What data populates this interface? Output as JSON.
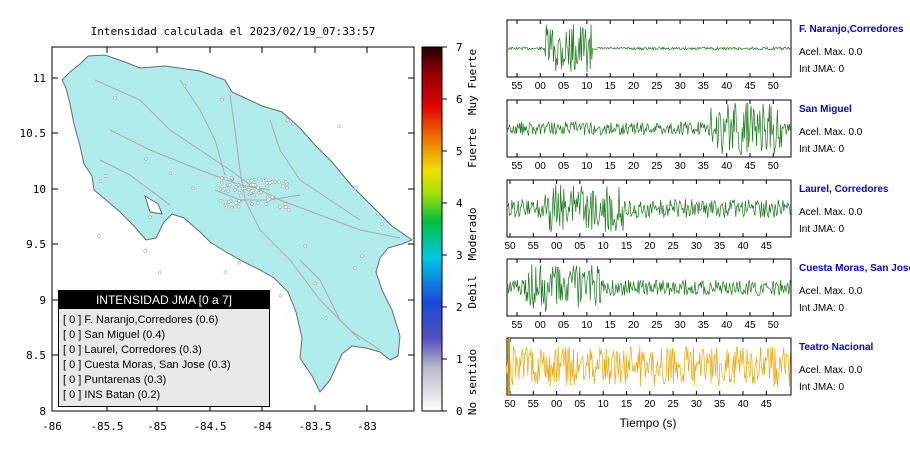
{
  "map": {
    "title": "Intensidad calculada el 2023/02/19_07:33:57",
    "x_ticks": [
      "-86",
      "-85.5",
      "-85",
      "-84.5",
      "-84",
      "-83.5",
      "-83"
    ],
    "y_ticks": [
      "11",
      "10.5",
      "10",
      "9.5",
      "9",
      "8.5",
      "8"
    ],
    "land_color": "#b0ecec",
    "legend": {
      "title": "INTENSIDAD JMA [0 a 7]",
      "items": [
        "[ 0 ]  F. Naranjo,Corredores (0.6)",
        "[ 0 ]  San Miguel (0.4)",
        "[ 0 ]  Laurel, Corredores (0.3)",
        "[ 0 ]  Cuesta Moras, San Jose (0.3)",
        "[ 0 ]  Puntarenas (0.3)",
        "[ 0 ]  INS Batan (0.2)"
      ]
    }
  },
  "colorbar": {
    "ticks": [
      "7",
      "6",
      "5",
      "4",
      "3",
      "2",
      "1",
      "0"
    ],
    "labels": [
      "Muy Fuerte",
      "Fuerte",
      "Moderado",
      "Debil",
      "No sentido"
    ]
  },
  "chart_data": {
    "type": "line",
    "xlabel": "Tiempo (s)",
    "note_values": "amplitude traces",
    "stations": [
      {
        "name": "F. Naranjo,Corredores",
        "acel": "Acel. Max. 0.0",
        "int": "Int JMA: 0",
        "color": "#1a7a1a",
        "ticks": [
          "55",
          "00",
          "05",
          "10",
          "15",
          "20",
          "25",
          "30",
          "35",
          "40",
          "45",
          "50"
        ],
        "start_sec": 53,
        "bursts": [
          [
            8,
            18,
            0.9
          ],
          [
            10,
            14,
            1.0
          ]
        ]
      },
      {
        "name": "San Miguel",
        "acel": "Acel. Max. 0.0",
        "int": "Int JMA: 0",
        "color": "#1a7a1a",
        "ticks": [
          "55",
          "00",
          "05",
          "10",
          "15",
          "20",
          "25",
          "30",
          "35",
          "40",
          "45",
          "50"
        ],
        "start_sec": 53,
        "bursts": [
          [
            0,
            60,
            0.25
          ],
          [
            43,
            58,
            1.0
          ]
        ]
      },
      {
        "name": "Laurel, Corredores",
        "acel": "Acel. Max. 0.0",
        "int": "Int JMA: 0",
        "color": "#1a7a1a",
        "ticks": [
          "50",
          "55",
          "00",
          "05",
          "10",
          "15",
          "20",
          "25",
          "30",
          "35",
          "40",
          "45"
        ],
        "start_sec": 50,
        "bursts": [
          [
            0,
            60,
            0.35
          ],
          [
            8,
            25,
            0.9
          ]
        ]
      },
      {
        "name": "Cuesta Moras, San Jose",
        "acel": "Acel. Max. 0.0",
        "int": "Int JMA: 0",
        "color": "#1a7a1a",
        "ticks": [
          "55",
          "00",
          "05",
          "10",
          "15",
          "20",
          "25",
          "30",
          "35",
          "40",
          "45",
          "50"
        ],
        "start_sec": 51,
        "bursts": [
          [
            0,
            60,
            0.3
          ],
          [
            4,
            20,
            0.9
          ]
        ]
      },
      {
        "name": "Teatro Nacional",
        "acel": "Acel. Max. 0.0",
        "int": "Int JMA: 0",
        "color": "#f0a500",
        "ticks": [
          "50",
          "55",
          "00",
          "05",
          "10",
          "15",
          "20",
          "25",
          "30",
          "35",
          "40",
          "45"
        ],
        "start_sec": 47,
        "bursts": [
          [
            0,
            60,
            0.75
          ]
        ]
      }
    ]
  }
}
